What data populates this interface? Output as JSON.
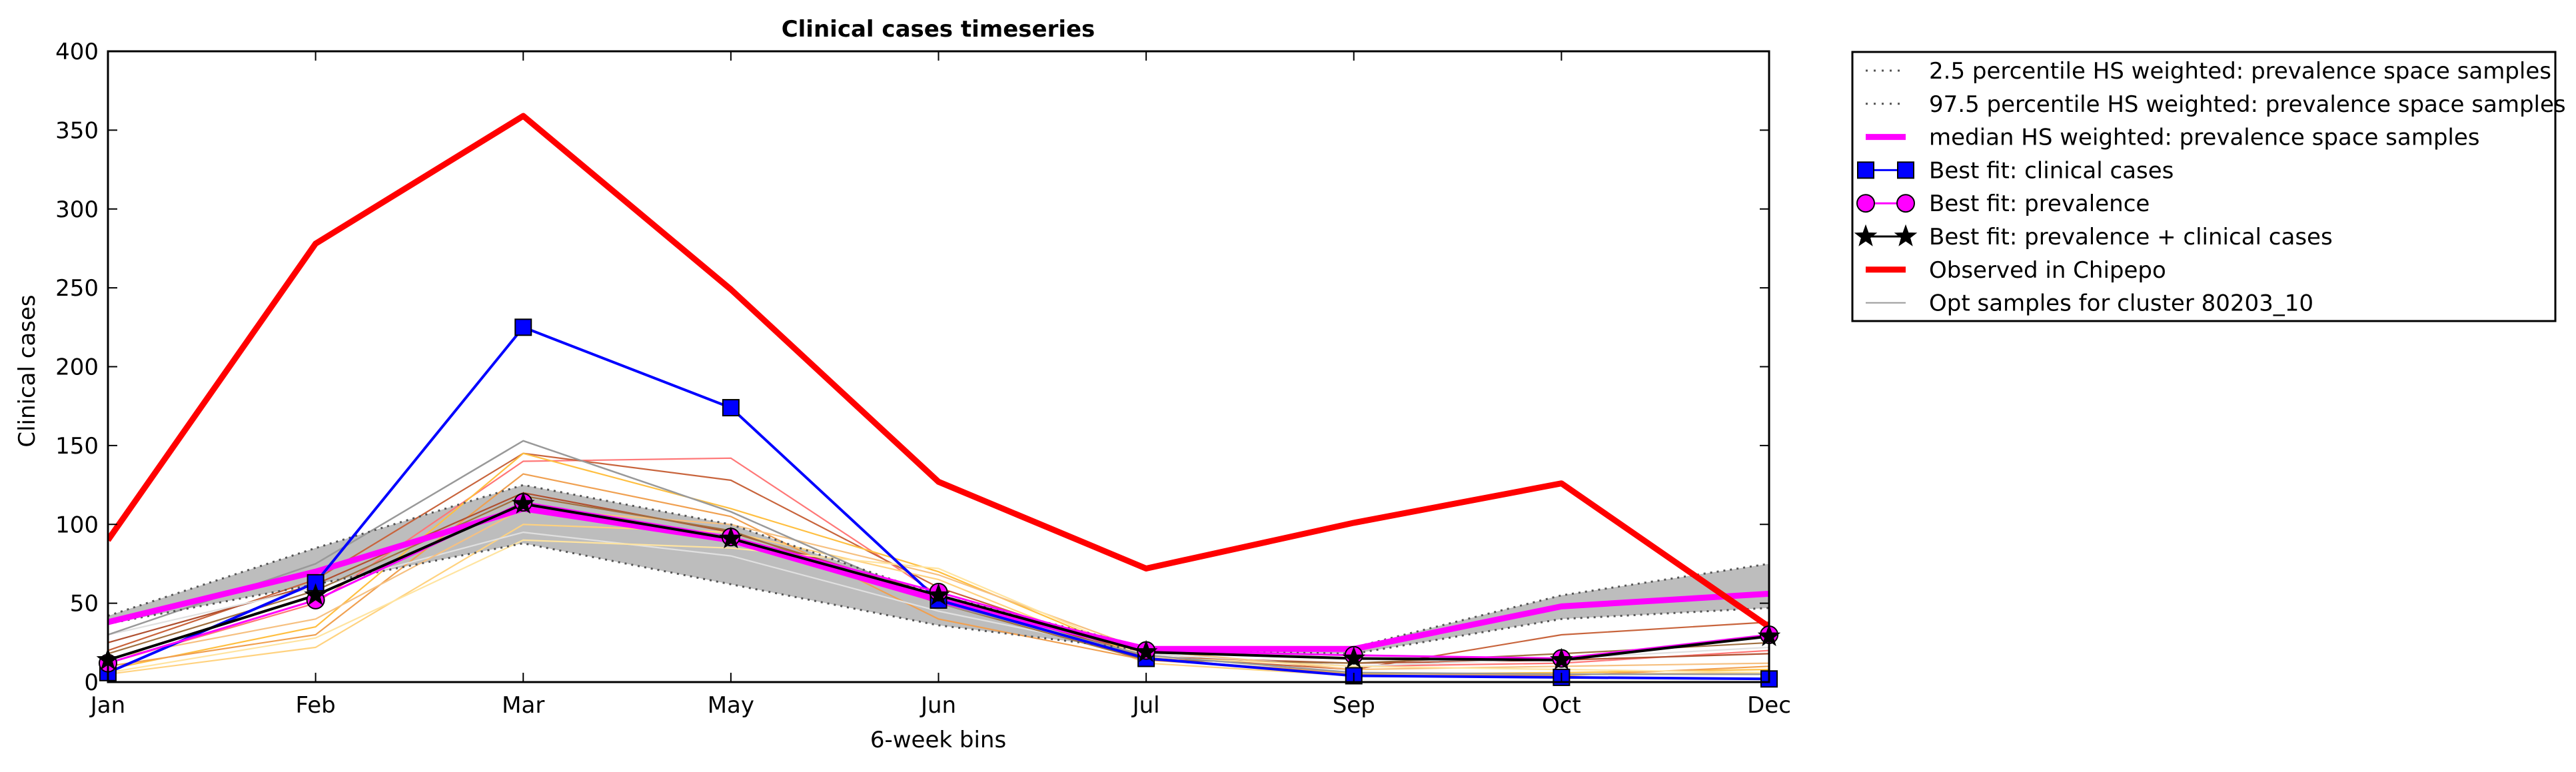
{
  "chart_data": {
    "type": "line",
    "title": "Clinical cases timeseries",
    "xlabel": "6-week bins",
    "ylabel": "Clinical cases",
    "categories": [
      "Jan",
      "Feb",
      "Mar",
      "May",
      "Jun",
      "Jul",
      "Sep",
      "Oct",
      "Dec"
    ],
    "ylim": [
      0,
      400
    ],
    "yticks": [
      0,
      50,
      100,
      150,
      200,
      250,
      300,
      350,
      400
    ],
    "grid": false,
    "legend_position": "outside-right-top",
    "band": {
      "lower": [
        37,
        62,
        88,
        62,
        36,
        20,
        18,
        40,
        47
      ],
      "upper": [
        42,
        85,
        125,
        100,
        55,
        22,
        22,
        55,
        75
      ],
      "color": "#bdbdbd"
    },
    "series": [
      {
        "name": "2.5 percentile HS weighted: prevalence space samples",
        "style": "dotted",
        "color": "#555555",
        "values": [
          37,
          62,
          88,
          62,
          36,
          20,
          18,
          40,
          47
        ]
      },
      {
        "name": "97.5 percentile HS weighted: prevalence space samples",
        "style": "dotted",
        "color": "#555555",
        "values": [
          42,
          85,
          125,
          100,
          55,
          22,
          22,
          55,
          75
        ]
      },
      {
        "name": "median HS weighted: prevalence space samples",
        "style": "solid",
        "color": "#ff00ff",
        "values": [
          38,
          70,
          110,
          90,
          52,
          21,
          21,
          48,
          56
        ]
      },
      {
        "name": "Best fit: clinical cases",
        "style": "solid",
        "color": "#0000ff",
        "marker": "square",
        "values": [
          6,
          63,
          225,
          174,
          52,
          15,
          4,
          3,
          2
        ]
      },
      {
        "name": "Best fit: prevalence",
        "style": "solid",
        "color": "#ff00ff",
        "marker": "circle",
        "values": [
          12,
          52,
          114,
          92,
          57,
          20,
          17,
          15,
          30
        ]
      },
      {
        "name": "Best fit: prevalence + clinical cases",
        "style": "solid",
        "color": "#000000",
        "marker": "star",
        "values": [
          14,
          55,
          113,
          91,
          55,
          19,
          15,
          14,
          29
        ]
      },
      {
        "name": "Observed in Chipepo",
        "style": "solid",
        "color": "#ff0000",
        "values": [
          90,
          278,
          359,
          249,
          127,
          72,
          101,
          126,
          35
        ]
      },
      {
        "name": "Opt samples for cluster 80203_10",
        "style": "thin",
        "color": "#999999",
        "values": [
          30,
          75,
          153,
          108,
          50,
          17,
          6,
          5,
          5
        ]
      }
    ],
    "samples": [
      {
        "color": "#ff7777",
        "values": [
          12,
          50,
          140,
          142,
          55,
          18,
          10,
          12,
          20
        ]
      },
      {
        "color": "#c8643c",
        "values": [
          20,
          65,
          145,
          128,
          60,
          16,
          8,
          30,
          38
        ]
      },
      {
        "color": "#ffbf40",
        "values": [
          8,
          35,
          145,
          110,
          70,
          15,
          5,
          6,
          8
        ]
      },
      {
        "color": "#ffd27f",
        "values": [
          5,
          22,
          100,
          95,
          65,
          12,
          4,
          5,
          6
        ]
      },
      {
        "color": "#f0a050",
        "values": [
          10,
          30,
          132,
          105,
          40,
          14,
          6,
          4,
          10
        ]
      },
      {
        "color": "#b05030",
        "values": [
          25,
          62,
          120,
          95,
          55,
          16,
          12,
          14,
          18
        ]
      },
      {
        "color": "#e0e0e0",
        "values": [
          30,
          60,
          95,
          80,
          45,
          18,
          10,
          15,
          22
        ]
      },
      {
        "color": "#f6c080",
        "values": [
          15,
          40,
          110,
          100,
          68,
          20,
          8,
          10,
          12
        ]
      },
      {
        "color": "#a07040",
        "values": [
          18,
          58,
          118,
          96,
          50,
          14,
          12,
          18,
          25
        ]
      },
      {
        "color": "#ffe4a0",
        "values": [
          6,
          28,
          90,
          85,
          72,
          16,
          10,
          8,
          6
        ]
      }
    ]
  }
}
